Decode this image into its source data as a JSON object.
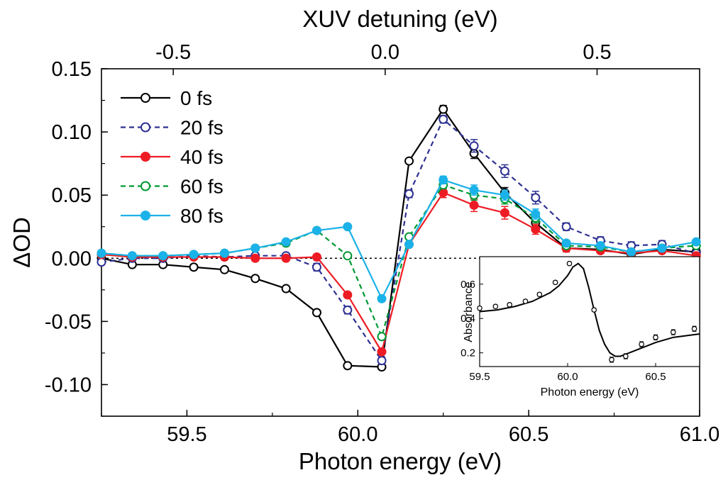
{
  "chart_data": {
    "type": "line",
    "xlabel": "Photon energy (eV)",
    "ylabel": "ΔOD",
    "top_xlabel": "XUV detuning (eV)",
    "xlim": [
      59.25,
      61.0
    ],
    "ylim": [
      -0.125,
      0.15
    ],
    "x_ticks": [
      "59.5",
      "60.0",
      "60.5",
      "61.0"
    ],
    "y_ticks": [
      "0.15",
      "0.10",
      "0.05",
      "0.00",
      "-0.05",
      "-0.10"
    ],
    "top_ticks": [
      "-0.5",
      "0.0",
      "0.5"
    ],
    "top_tick_positions": [
      59.46,
      60.08,
      60.7
    ],
    "zero_line": true,
    "legend_position": "top-left",
    "x": [
      59.25,
      59.34,
      59.43,
      59.52,
      59.61,
      59.7,
      59.79,
      59.88,
      59.97,
      60.07,
      60.15,
      60.25,
      60.34,
      60.43,
      60.52,
      60.61,
      60.71,
      60.8,
      60.89,
      60.99
    ],
    "series": [
      {
        "name": "0 fs",
        "color": "#000000",
        "dash": false,
        "filled": false,
        "values": [
          0.0,
          -0.005,
          -0.005,
          -0.007,
          -0.009,
          -0.016,
          -0.024,
          -0.043,
          -0.085,
          -0.086,
          0.077,
          0.118,
          0.083,
          0.052,
          0.028,
          0.008,
          0.007,
          0.003,
          0.007,
          0.005
        ],
        "errors": [
          0,
          0,
          0,
          0,
          0,
          0,
          0,
          0,
          0,
          0.002,
          0,
          0.003,
          0.004,
          0.004,
          0.004,
          0.002,
          0.002,
          0.002,
          0.002,
          0.002
        ]
      },
      {
        "name": "20 fs",
        "color": "#2e3192",
        "dash": true,
        "filled": false,
        "values": [
          -0.003,
          0.0,
          0.0,
          0.002,
          0.001,
          0.002,
          0.002,
          -0.007,
          -0.041,
          -0.081,
          0.051,
          0.11,
          0.089,
          0.069,
          0.048,
          0.025,
          0.014,
          0.01,
          0.011,
          0.004
        ],
        "errors": [
          0,
          0,
          0,
          0,
          0,
          0,
          0,
          0.003,
          0.003,
          0.003,
          0.003,
          0.003,
          0.005,
          0.005,
          0.005,
          0.003,
          0.003,
          0.003,
          0.003,
          0.002
        ]
      },
      {
        "name": "40 fs",
        "color": "#ed1c24",
        "dash": false,
        "filled": true,
        "values": [
          0.003,
          0.001,
          0.001,
          0.001,
          0.001,
          0.0,
          0.0,
          0.001,
          -0.029,
          -0.074,
          0.011,
          0.052,
          0.042,
          0.036,
          0.023,
          0.008,
          0.006,
          0.004,
          0.006,
          0.002
        ],
        "errors": [
          0,
          0,
          0,
          0,
          0,
          0,
          0,
          0,
          0,
          0,
          0,
          0.004,
          0.005,
          0.005,
          0.004,
          0.003,
          0.002,
          0.002,
          0.002,
          0.002
        ]
      },
      {
        "name": "60 fs",
        "color": "#009933",
        "dash": true,
        "filled": false,
        "values": [
          0.004,
          0.002,
          0.002,
          0.003,
          0.004,
          0.008,
          0.012,
          0.022,
          0.002,
          -0.062,
          0.017,
          0.058,
          0.05,
          0.047,
          0.032,
          0.01,
          0.009,
          0.005,
          0.008,
          0.01
        ],
        "errors": [
          0,
          0,
          0,
          0,
          0,
          0,
          0,
          0,
          0,
          0,
          0,
          0.003,
          0.004,
          0.004,
          0.004,
          0.002,
          0.002,
          0.002,
          0.002,
          0.002
        ]
      },
      {
        "name": "80 fs",
        "color": "#1ab2e8",
        "dash": false,
        "filled": true,
        "values": [
          0.004,
          0.002,
          0.002,
          0.003,
          0.004,
          0.008,
          0.013,
          0.022,
          0.025,
          -0.032,
          0.011,
          0.062,
          0.054,
          0.05,
          0.035,
          0.012,
          0.01,
          0.005,
          0.008,
          0.013
        ],
        "errors": [
          0,
          0,
          0,
          0,
          0,
          0,
          0,
          0,
          0,
          0,
          0,
          0.003,
          0.004,
          0.004,
          0.004,
          0.002,
          0.002,
          0.002,
          0.002,
          0.002
        ]
      }
    ],
    "inset": {
      "type": "scatter-with-fit",
      "xlabel": "Photon energy (eV)",
      "ylabel": "Absorbance",
      "xlim": [
        59.5,
        60.75
      ],
      "ylim": [
        0.12,
        0.76
      ],
      "x_ticks": [
        "59.5",
        "60.0",
        "60.5"
      ],
      "y_ticks": [
        "0.6",
        "0.4",
        "0.2"
      ],
      "points_x": [
        59.5,
        59.59,
        59.67,
        59.76,
        59.84,
        59.93,
        60.01,
        60.15,
        60.25,
        60.33,
        60.42,
        60.5,
        60.6,
        60.72
      ],
      "points_y": [
        0.46,
        0.47,
        0.48,
        0.5,
        0.54,
        0.61,
        0.72,
        0.45,
        0.16,
        0.18,
        0.25,
        0.29,
        0.32,
        0.34
      ],
      "errors": [
        0.01,
        0.01,
        0.01,
        0.01,
        0.01,
        0.01,
        0.01,
        0.01,
        0.015,
        0.015,
        0.015,
        0.015,
        0.015,
        0.015
      ],
      "fit_x": [
        59.5,
        59.6,
        59.7,
        59.8,
        59.9,
        59.95,
        60.0,
        60.03,
        60.06,
        60.09,
        60.12,
        60.15,
        60.18,
        60.21,
        60.24,
        60.27,
        60.3,
        60.35,
        60.4,
        60.5,
        60.6,
        60.75
      ],
      "fit_y": [
        0.44,
        0.45,
        0.47,
        0.5,
        0.55,
        0.59,
        0.65,
        0.7,
        0.72,
        0.69,
        0.58,
        0.45,
        0.33,
        0.25,
        0.2,
        0.18,
        0.18,
        0.2,
        0.22,
        0.26,
        0.29,
        0.31
      ]
    }
  }
}
